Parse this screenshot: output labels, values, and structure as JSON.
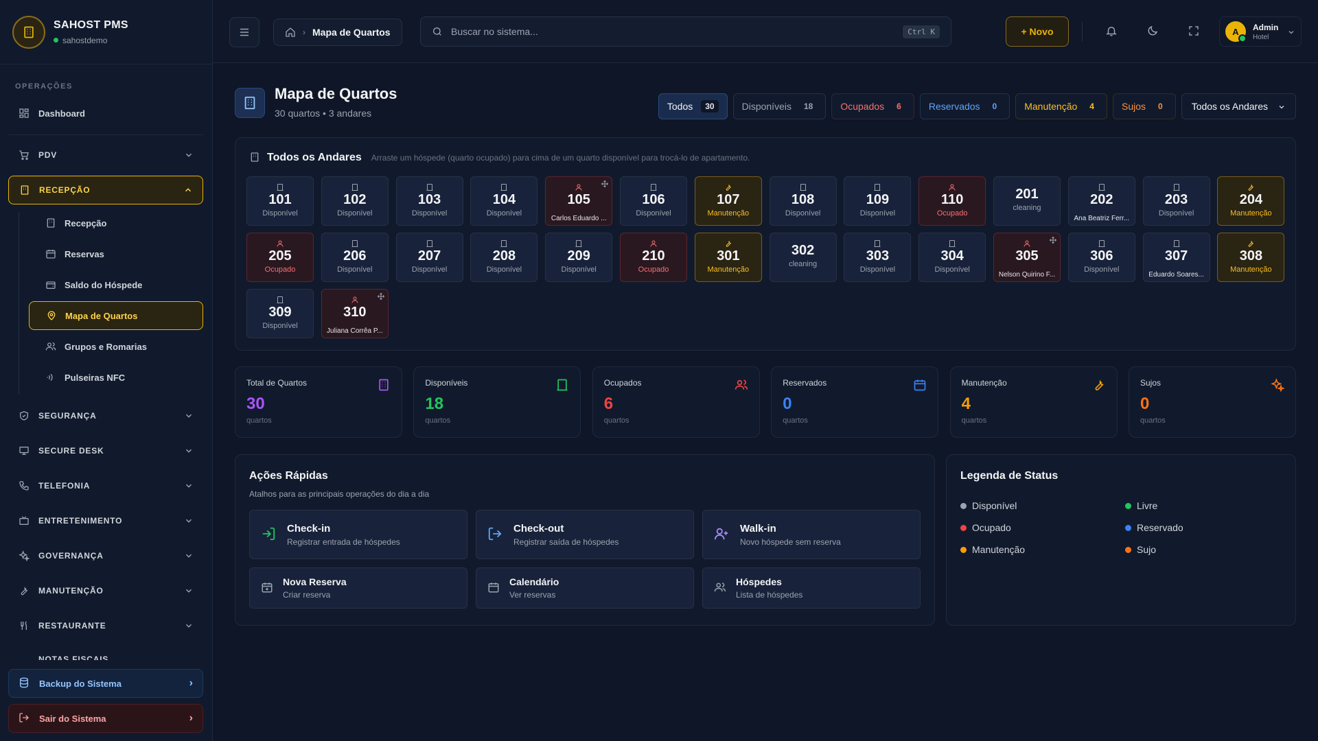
{
  "brand": {
    "name": "SAHOST PMS",
    "sub": "sahostdemo"
  },
  "sidebar": {
    "section_title": "OPERAÇÕES",
    "dashboard": "Dashboard",
    "pdv": "PDV",
    "recepcao": "RECEPÇÃO",
    "sub_items": [
      "Recepção",
      "Reservas",
      "Saldo do Hóspede",
      "Mapa de Quartos",
      "Grupos e Romarias",
      "Pulseiras NFC"
    ],
    "groups": [
      "SEGURANÇA",
      "SECURE DESK",
      "TELEFONIA",
      "ENTRETENIMENTO",
      "GOVERNANÇA",
      "MANUTENÇÃO",
      "RESTAURANTE",
      "NOTAS FISCAIS"
    ],
    "backup": "Backup do Sistema",
    "logout": "Sair do Sistema"
  },
  "topbar": {
    "breadcrumb": "Mapa de Quartos",
    "search_placeholder": "Buscar no sistema...",
    "search_kbd": "Ctrl K",
    "new_button": "+ Novo",
    "user_name": "Admin",
    "user_role": "Hotel",
    "avatar": "A"
  },
  "page": {
    "title": "Mapa de Quartos",
    "subtitle": "30 quartos • 3 andares"
  },
  "filters": {
    "todos": {
      "label": "Todos",
      "count": "30"
    },
    "disponiveis": {
      "label": "Disponíveis",
      "count": "18"
    },
    "ocupados": {
      "label": "Ocupados",
      "count": "6"
    },
    "reservados": {
      "label": "Reservados",
      "count": "0"
    },
    "manutencao": {
      "label": "Manutenção",
      "count": "4"
    },
    "sujos": {
      "label": "Sujos",
      "count": "0"
    },
    "floor_select": "Todos os Andares"
  },
  "rooms_panel": {
    "title": "Todos os Andares",
    "hint": "Arraste um hóspede (quarto ocupado) para cima de um quarto disponível para trocá-lo de apartamento."
  },
  "rooms": [
    {
      "num": "101",
      "status": "Disponível",
      "type": "disp"
    },
    {
      "num": "102",
      "status": "Disponível",
      "type": "disp"
    },
    {
      "num": "103",
      "status": "Disponível",
      "type": "disp"
    },
    {
      "num": "104",
      "status": "Disponível",
      "type": "disp"
    },
    {
      "num": "105",
      "status": "Ocupado",
      "type": "occ",
      "guest": "Carlos Eduardo ..."
    },
    {
      "num": "106",
      "status": "Disponível",
      "type": "disp"
    },
    {
      "num": "107",
      "status": "Manutenção",
      "type": "man"
    },
    {
      "num": "108",
      "status": "Disponível",
      "type": "disp"
    },
    {
      "num": "109",
      "status": "Disponível",
      "type": "disp"
    },
    {
      "num": "110",
      "status": "Ocupado",
      "type": "occ"
    },
    {
      "num": "201",
      "status": "cleaning",
      "type": "cln"
    },
    {
      "num": "202",
      "status": "Disponível",
      "type": "disp",
      "guest": "Ana Beatriz Ferr..."
    },
    {
      "num": "203",
      "status": "Disponível",
      "type": "disp"
    },
    {
      "num": "204",
      "status": "Manutenção",
      "type": "man"
    },
    {
      "num": "205",
      "status": "Ocupado",
      "type": "occ"
    },
    {
      "num": "206",
      "status": "Disponível",
      "type": "disp"
    },
    {
      "num": "207",
      "status": "Disponível",
      "type": "disp"
    },
    {
      "num": "208",
      "status": "Disponível",
      "type": "disp"
    },
    {
      "num": "209",
      "status": "Disponível",
      "type": "disp"
    },
    {
      "num": "210",
      "status": "Ocupado",
      "type": "occ"
    },
    {
      "num": "301",
      "status": "Manutenção",
      "type": "man"
    },
    {
      "num": "302",
      "status": "cleaning",
      "type": "cln"
    },
    {
      "num": "303",
      "status": "Disponível",
      "type": "disp"
    },
    {
      "num": "304",
      "status": "Disponível",
      "type": "disp"
    },
    {
      "num": "305",
      "status": "Ocupado",
      "type": "occ",
      "guest": "Nelson Quirino F..."
    },
    {
      "num": "306",
      "status": "Disponível",
      "type": "disp"
    },
    {
      "num": "307",
      "status": "Disponível",
      "type": "disp",
      "guest": "Eduardo Soares..."
    },
    {
      "num": "308",
      "status": "Manutenção",
      "type": "man"
    },
    {
      "num": "309",
      "status": "Disponível",
      "type": "disp"
    },
    {
      "num": "310",
      "status": "Ocupado",
      "type": "occ",
      "guest": "Juliana Corrêa P..."
    }
  ],
  "stats": [
    {
      "label": "Total de Quartos",
      "value": "30",
      "unit": "quartos",
      "color": "#a855f7"
    },
    {
      "label": "Disponíveis",
      "value": "18",
      "unit": "quartos",
      "color": "#22c55e"
    },
    {
      "label": "Ocupados",
      "value": "6",
      "unit": "quartos",
      "color": "#ef4444"
    },
    {
      "label": "Reservados",
      "value": "0",
      "unit": "quartos",
      "color": "#3b82f6"
    },
    {
      "label": "Manutenção",
      "value": "4",
      "unit": "quartos",
      "color": "#f59e0b"
    },
    {
      "label": "Sujos",
      "value": "0",
      "unit": "quartos",
      "color": "#f97316"
    }
  ],
  "quick_actions": {
    "title": "Ações Rápidas",
    "subtitle": "Atalhos para as principais operações do dia a dia",
    "checkin": {
      "title": "Check-in",
      "desc": "Registrar entrada de hóspedes"
    },
    "checkout": {
      "title": "Check-out",
      "desc": "Registrar saída de hóspedes"
    },
    "walkin": {
      "title": "Walk-in",
      "desc": "Novo hóspede sem reserva"
    },
    "nova_reserva": {
      "title": "Nova Reserva",
      "desc": "Criar reserva"
    },
    "calendario": {
      "title": "Calendário",
      "desc": "Ver reservas"
    },
    "hospedes": {
      "title": "Hóspedes",
      "desc": "Lista de hóspedes"
    }
  },
  "legend": {
    "title": "Legenda de Status",
    "items": [
      {
        "label": "Disponível",
        "color": "#9ca3af"
      },
      {
        "label": "Livre",
        "color": "#22c55e"
      },
      {
        "label": "Ocupado",
        "color": "#ef4444"
      },
      {
        "label": "Reservado",
        "color": "#3b82f6"
      },
      {
        "label": "Manutenção",
        "color": "#f59e0b"
      },
      {
        "label": "Sujo",
        "color": "#f97316"
      }
    ]
  },
  "colors": {
    "accent": "#eab308",
    "background": "#0e1627",
    "panel": "#111a2c"
  }
}
